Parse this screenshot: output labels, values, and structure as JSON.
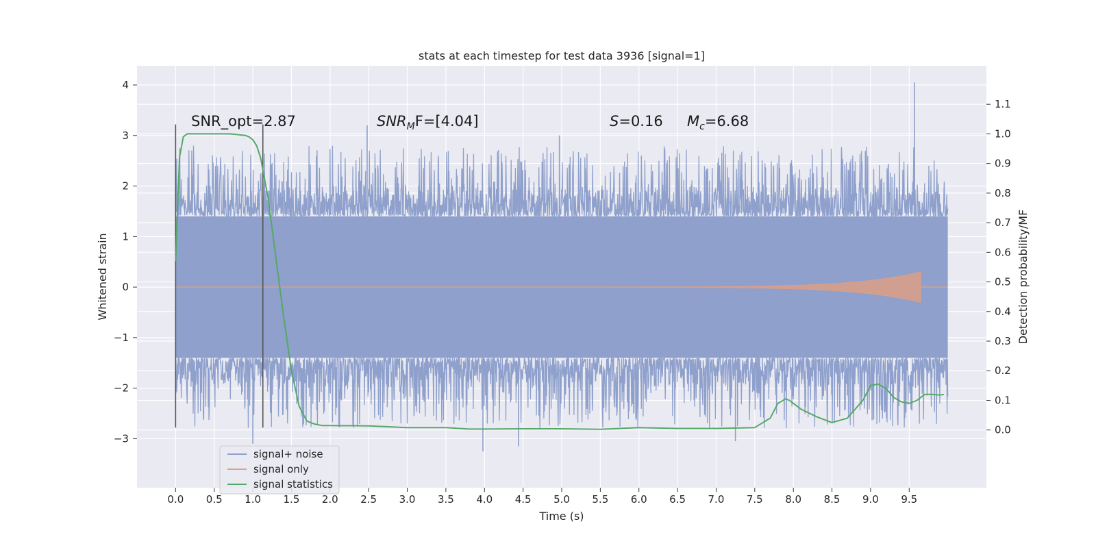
{
  "chart_data": {
    "type": "line",
    "title": "stats at each timestep for test data 3936 [signal=1]",
    "xlabel": "Time (s)",
    "ylabel": "Whitened strain",
    "y2label": "Detection probability/MF",
    "xlim": [
      -0.5,
      10.5
    ],
    "ylim": [
      -3.97,
      4.38
    ],
    "y2lim": [
      -0.195,
      1.23
    ],
    "x_ticks": [
      "0.0",
      "0.5",
      "1.0",
      "1.5",
      "2.0",
      "2.5",
      "3.0",
      "3.5",
      "4.0",
      "4.5",
      "5.0",
      "5.5",
      "6.0",
      "6.5",
      "7.0",
      "7.5",
      "8.0",
      "8.5",
      "9.0",
      "9.5"
    ],
    "y_ticks": [
      "4",
      "3",
      "2",
      "1",
      "0",
      "−1",
      "−2",
      "−3"
    ],
    "y2_ticks": [
      "1.1",
      "1.0",
      "0.9",
      "0.8",
      "0.7",
      "0.6",
      "0.5",
      "0.4",
      "0.3",
      "0.2",
      "0.1",
      "0.0"
    ],
    "grid": true,
    "legend_position": "lower-left",
    "vertical_markers": [
      0.0,
      1.13
    ],
    "annotations": {
      "snr_opt": "SNR_opt=2.87",
      "snr_mf_name": "SNR",
      "snr_mf_sub": "M",
      "snr_mf_rest": "F=[4.04]",
      "s_name": "S",
      "s_rest": "=0.16",
      "mc_name": "M",
      "mc_sub": "c",
      "mc_rest": "=6.68"
    },
    "series": [
      {
        "name": "signal+ noise",
        "color": "#8ea0cb",
        "t_range": [
          0.0,
          10.0
        ],
        "envelope_typical": 1.4,
        "envelope_peak": 2.8,
        "notable_peaks": [
          [
            9.57,
            4.05
          ],
          [
            2.48,
            3.2
          ],
          [
            4.97,
            3.0
          ],
          [
            1.0,
            -3.1
          ],
          [
            4.44,
            -3.15
          ],
          [
            3.98,
            -3.25
          ],
          [
            7.25,
            -3.05
          ]
        ]
      },
      {
        "name": "signal only",
        "color": "#dd9f86",
        "chirp_end_time": 9.65,
        "peak_amplitude": 0.3
      },
      {
        "name": "signal statistics",
        "color": "#55a868",
        "axis": "right",
        "x": [
          0.0,
          0.05,
          0.1,
          0.15,
          0.2,
          0.3,
          0.5,
          0.7,
          0.9,
          0.95,
          1.0,
          1.05,
          1.1,
          1.2,
          1.3,
          1.4,
          1.5,
          1.6,
          1.7,
          1.8,
          1.9,
          2.0,
          2.5,
          3.0,
          3.5,
          3.8,
          4.0,
          4.5,
          5.0,
          5.5,
          6.0,
          6.5,
          7.0,
          7.5,
          7.7,
          7.8,
          7.9,
          7.95,
          8.0,
          8.1,
          8.3,
          8.5,
          8.7,
          8.9,
          9.0,
          9.1,
          9.2,
          9.3,
          9.4,
          9.5,
          9.6,
          9.7,
          9.8,
          9.9,
          9.95
        ],
        "y": [
          0.57,
          0.92,
          0.99,
          1.0,
          1.0,
          1.0,
          1.0,
          1.0,
          0.995,
          0.99,
          0.98,
          0.96,
          0.92,
          0.78,
          0.58,
          0.38,
          0.2,
          0.08,
          0.03,
          0.02,
          0.015,
          0.015,
          0.014,
          0.008,
          0.008,
          0.003,
          0.003,
          0.004,
          0.004,
          0.002,
          0.008,
          0.005,
          0.005,
          0.008,
          0.04,
          0.09,
          0.105,
          0.1,
          0.09,
          0.07,
          0.045,
          0.025,
          0.04,
          0.1,
          0.15,
          0.155,
          0.14,
          0.11,
          0.095,
          0.09,
          0.1,
          0.12,
          0.12,
          0.118,
          0.12
        ]
      }
    ]
  }
}
